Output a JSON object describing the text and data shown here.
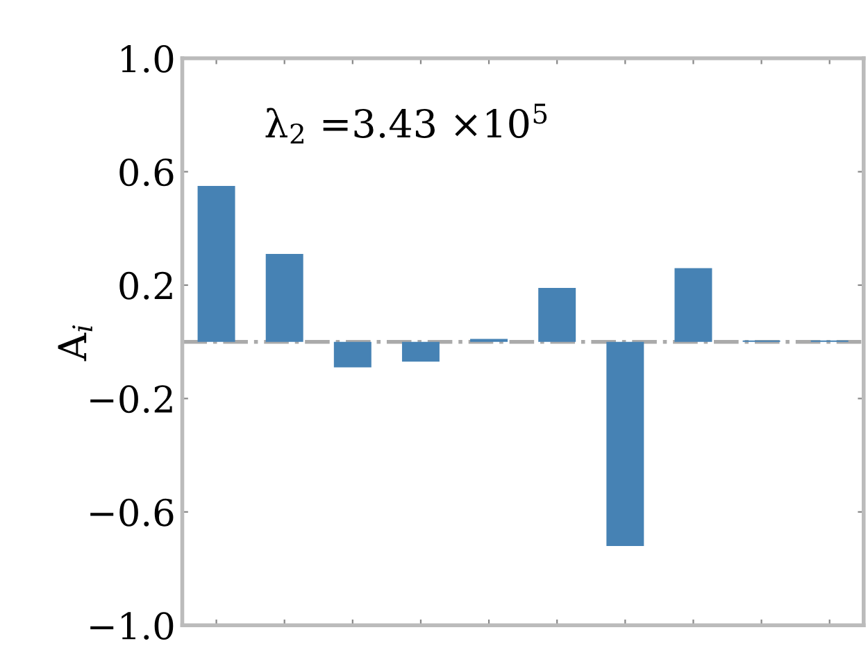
{
  "chart_data": {
    "type": "bar",
    "ylabel": "A$_{i}$",
    "annotations": [
      "λ$_{2}$ =3.43 ×10$^{5}$"
    ],
    "categories": [
      null,
      null,
      null,
      null,
      null,
      null,
      null,
      null,
      null,
      null
    ],
    "values": [
      0.55,
      0.31,
      -0.09,
      -0.07,
      0.01,
      0.19,
      -0.72,
      0.26,
      0.005,
      0.005
    ],
    "color": "#4682b4",
    "ylim": [
      -1.0,
      1.0
    ],
    "yticks": [
      {
        "value": -1.0,
        "label": "−1.0"
      },
      {
        "value": -0.6,
        "label": "−0.6"
      },
      {
        "value": -0.2,
        "label": "−0.2"
      },
      0.2,
      0.6,
      {
        "value": 1.0,
        "label": "1.0"
      }
    ],
    "ref_lines": [
      {
        "axis": "y",
        "value": 0,
        "color": "#aaaaaa",
        "line_style": "dashdot"
      }
    ],
    "tick_labels": "y",
    "grid": false,
    "legend": false
  }
}
